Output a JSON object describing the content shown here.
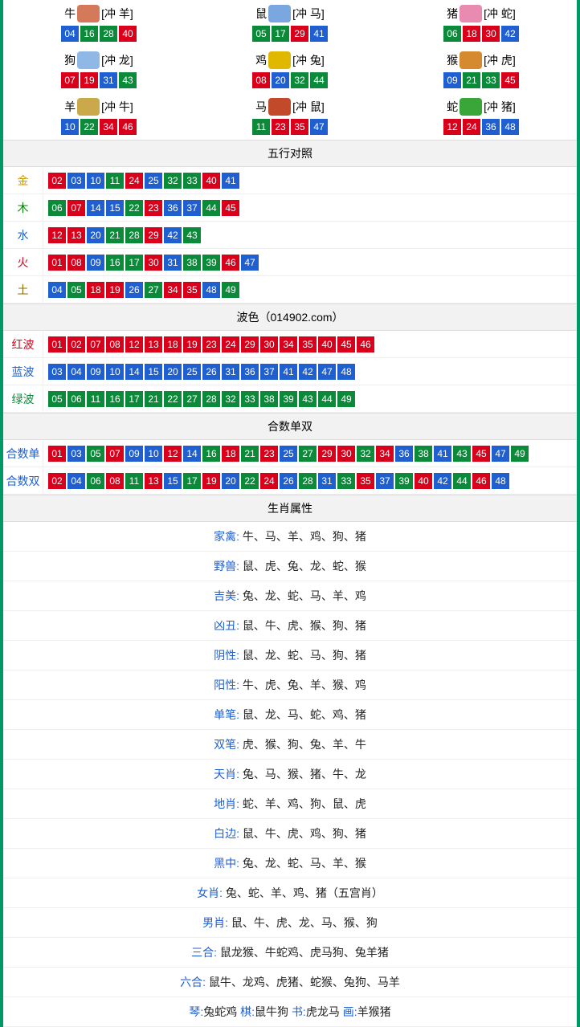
{
  "colors": {
    "frame": "#009866",
    "red": "#d9001b",
    "blue": "#1f5fd0",
    "green": "#0b8a3a",
    "header_bg": "#f2f2f2",
    "label_gold": "#c99a00",
    "label_wood": "#008000",
    "label_water": "#1f5fd0",
    "label_fire": "#d9001b",
    "label_earth": "#8a6d00",
    "label_redwave": "#d9001b",
    "label_bluewave": "#1f5fd0",
    "label_greenwave": "#0b8a3a",
    "label_heshu": "#1f5fd0",
    "attr_label": "#1f5fd0"
  },
  "zodiac": [
    {
      "name": "牛",
      "clash": "[冲 羊]",
      "icon_bg": "#d47a5a",
      "nums": [
        {
          "n": "04",
          "c": "blue"
        },
        {
          "n": "16",
          "c": "green"
        },
        {
          "n": "28",
          "c": "green"
        },
        {
          "n": "40",
          "c": "red"
        }
      ]
    },
    {
      "name": "鼠",
      "clash": "[冲 马]",
      "icon_bg": "#7aa7e0",
      "nums": [
        {
          "n": "05",
          "c": "green"
        },
        {
          "n": "17",
          "c": "green"
        },
        {
          "n": "29",
          "c": "red"
        },
        {
          "n": "41",
          "c": "blue"
        }
      ]
    },
    {
      "name": "猪",
      "clash": "[冲 蛇]",
      "icon_bg": "#e98bb0",
      "nums": [
        {
          "n": "06",
          "c": "green"
        },
        {
          "n": "18",
          "c": "red"
        },
        {
          "n": "30",
          "c": "red"
        },
        {
          "n": "42",
          "c": "blue"
        }
      ]
    },
    {
      "name": "狗",
      "clash": "[冲 龙]",
      "icon_bg": "#8fb8e6",
      "nums": [
        {
          "n": "07",
          "c": "red"
        },
        {
          "n": "19",
          "c": "red"
        },
        {
          "n": "31",
          "c": "blue"
        },
        {
          "n": "43",
          "c": "green"
        }
      ]
    },
    {
      "name": "鸡",
      "clash": "[冲 兔]",
      "icon_bg": "#e0b800",
      "nums": [
        {
          "n": "08",
          "c": "red"
        },
        {
          "n": "20",
          "c": "blue"
        },
        {
          "n": "32",
          "c": "green"
        },
        {
          "n": "44",
          "c": "green"
        }
      ]
    },
    {
      "name": "猴",
      "clash": "[冲 虎]",
      "icon_bg": "#d68a30",
      "nums": [
        {
          "n": "09",
          "c": "blue"
        },
        {
          "n": "21",
          "c": "green"
        },
        {
          "n": "33",
          "c": "green"
        },
        {
          "n": "45",
          "c": "red"
        }
      ]
    },
    {
      "name": "羊",
      "clash": "[冲 牛]",
      "icon_bg": "#c9a94a",
      "nums": [
        {
          "n": "10",
          "c": "blue"
        },
        {
          "n": "22",
          "c": "green"
        },
        {
          "n": "34",
          "c": "red"
        },
        {
          "n": "46",
          "c": "red"
        }
      ]
    },
    {
      "name": "马",
      "clash": "[冲 鼠]",
      "icon_bg": "#c24a2a",
      "nums": [
        {
          "n": "11",
          "c": "green"
        },
        {
          "n": "23",
          "c": "red"
        },
        {
          "n": "35",
          "c": "red"
        },
        {
          "n": "47",
          "c": "blue"
        }
      ]
    },
    {
      "name": "蛇",
      "clash": "[冲 猪]",
      "icon_bg": "#3aa63a",
      "nums": [
        {
          "n": "12",
          "c": "red"
        },
        {
          "n": "24",
          "c": "red"
        },
        {
          "n": "36",
          "c": "blue"
        },
        {
          "n": "48",
          "c": "blue"
        }
      ]
    }
  ],
  "wuxing": {
    "header": "五行对照",
    "rows": [
      {
        "label": "金",
        "label_color": "label_gold",
        "nums": [
          {
            "n": "02",
            "c": "red"
          },
          {
            "n": "03",
            "c": "blue"
          },
          {
            "n": "10",
            "c": "blue"
          },
          {
            "n": "11",
            "c": "green"
          },
          {
            "n": "24",
            "c": "red"
          },
          {
            "n": "25",
            "c": "blue"
          },
          {
            "n": "32",
            "c": "green"
          },
          {
            "n": "33",
            "c": "green"
          },
          {
            "n": "40",
            "c": "red"
          },
          {
            "n": "41",
            "c": "blue"
          }
        ]
      },
      {
        "label": "木",
        "label_color": "label_wood",
        "nums": [
          {
            "n": "06",
            "c": "green"
          },
          {
            "n": "07",
            "c": "red"
          },
          {
            "n": "14",
            "c": "blue"
          },
          {
            "n": "15",
            "c": "blue"
          },
          {
            "n": "22",
            "c": "green"
          },
          {
            "n": "23",
            "c": "red"
          },
          {
            "n": "36",
            "c": "blue"
          },
          {
            "n": "37",
            "c": "blue"
          },
          {
            "n": "44",
            "c": "green"
          },
          {
            "n": "45",
            "c": "red"
          }
        ]
      },
      {
        "label": "水",
        "label_color": "label_water",
        "nums": [
          {
            "n": "12",
            "c": "red"
          },
          {
            "n": "13",
            "c": "red"
          },
          {
            "n": "20",
            "c": "blue"
          },
          {
            "n": "21",
            "c": "green"
          },
          {
            "n": "28",
            "c": "green"
          },
          {
            "n": "29",
            "c": "red"
          },
          {
            "n": "42",
            "c": "blue"
          },
          {
            "n": "43",
            "c": "green"
          }
        ]
      },
      {
        "label": "火",
        "label_color": "label_fire",
        "nums": [
          {
            "n": "01",
            "c": "red"
          },
          {
            "n": "08",
            "c": "red"
          },
          {
            "n": "09",
            "c": "blue"
          },
          {
            "n": "16",
            "c": "green"
          },
          {
            "n": "17",
            "c": "green"
          },
          {
            "n": "30",
            "c": "red"
          },
          {
            "n": "31",
            "c": "blue"
          },
          {
            "n": "38",
            "c": "green"
          },
          {
            "n": "39",
            "c": "green"
          },
          {
            "n": "46",
            "c": "red"
          },
          {
            "n": "47",
            "c": "blue"
          }
        ]
      },
      {
        "label": "土",
        "label_color": "label_earth",
        "nums": [
          {
            "n": "04",
            "c": "blue"
          },
          {
            "n": "05",
            "c": "green"
          },
          {
            "n": "18",
            "c": "red"
          },
          {
            "n": "19",
            "c": "red"
          },
          {
            "n": "26",
            "c": "blue"
          },
          {
            "n": "27",
            "c": "green"
          },
          {
            "n": "34",
            "c": "red"
          },
          {
            "n": "35",
            "c": "red"
          },
          {
            "n": "48",
            "c": "blue"
          },
          {
            "n": "49",
            "c": "green"
          }
        ]
      }
    ]
  },
  "bose": {
    "header": "波色（014902.com）",
    "rows": [
      {
        "label": "红波",
        "label_color": "label_redwave",
        "nums": [
          {
            "n": "01",
            "c": "red"
          },
          {
            "n": "02",
            "c": "red"
          },
          {
            "n": "07",
            "c": "red"
          },
          {
            "n": "08",
            "c": "red"
          },
          {
            "n": "12",
            "c": "red"
          },
          {
            "n": "13",
            "c": "red"
          },
          {
            "n": "18",
            "c": "red"
          },
          {
            "n": "19",
            "c": "red"
          },
          {
            "n": "23",
            "c": "red"
          },
          {
            "n": "24",
            "c": "red"
          },
          {
            "n": "29",
            "c": "red"
          },
          {
            "n": "30",
            "c": "red"
          },
          {
            "n": "34",
            "c": "red"
          },
          {
            "n": "35",
            "c": "red"
          },
          {
            "n": "40",
            "c": "red"
          },
          {
            "n": "45",
            "c": "red"
          },
          {
            "n": "46",
            "c": "red"
          }
        ]
      },
      {
        "label": "蓝波",
        "label_color": "label_bluewave",
        "nums": [
          {
            "n": "03",
            "c": "blue"
          },
          {
            "n": "04",
            "c": "blue"
          },
          {
            "n": "09",
            "c": "blue"
          },
          {
            "n": "10",
            "c": "blue"
          },
          {
            "n": "14",
            "c": "blue"
          },
          {
            "n": "15",
            "c": "blue"
          },
          {
            "n": "20",
            "c": "blue"
          },
          {
            "n": "25",
            "c": "blue"
          },
          {
            "n": "26",
            "c": "blue"
          },
          {
            "n": "31",
            "c": "blue"
          },
          {
            "n": "36",
            "c": "blue"
          },
          {
            "n": "37",
            "c": "blue"
          },
          {
            "n": "41",
            "c": "blue"
          },
          {
            "n": "42",
            "c": "blue"
          },
          {
            "n": "47",
            "c": "blue"
          },
          {
            "n": "48",
            "c": "blue"
          }
        ]
      },
      {
        "label": "绿波",
        "label_color": "label_greenwave",
        "nums": [
          {
            "n": "05",
            "c": "green"
          },
          {
            "n": "06",
            "c": "green"
          },
          {
            "n": "11",
            "c": "green"
          },
          {
            "n": "16",
            "c": "green"
          },
          {
            "n": "17",
            "c": "green"
          },
          {
            "n": "21",
            "c": "green"
          },
          {
            "n": "22",
            "c": "green"
          },
          {
            "n": "27",
            "c": "green"
          },
          {
            "n": "28",
            "c": "green"
          },
          {
            "n": "32",
            "c": "green"
          },
          {
            "n": "33",
            "c": "green"
          },
          {
            "n": "38",
            "c": "green"
          },
          {
            "n": "39",
            "c": "green"
          },
          {
            "n": "43",
            "c": "green"
          },
          {
            "n": "44",
            "c": "green"
          },
          {
            "n": "49",
            "c": "green"
          }
        ]
      }
    ]
  },
  "heshu": {
    "header": "合数单双",
    "rows": [
      {
        "label": "合数单",
        "label_color": "label_heshu",
        "nums": [
          {
            "n": "01",
            "c": "red"
          },
          {
            "n": "03",
            "c": "blue"
          },
          {
            "n": "05",
            "c": "green"
          },
          {
            "n": "07",
            "c": "red"
          },
          {
            "n": "09",
            "c": "blue"
          },
          {
            "n": "10",
            "c": "blue"
          },
          {
            "n": "12",
            "c": "red"
          },
          {
            "n": "14",
            "c": "blue"
          },
          {
            "n": "16",
            "c": "green"
          },
          {
            "n": "18",
            "c": "red"
          },
          {
            "n": "21",
            "c": "green"
          },
          {
            "n": "23",
            "c": "red"
          },
          {
            "n": "25",
            "c": "blue"
          },
          {
            "n": "27",
            "c": "green"
          },
          {
            "n": "29",
            "c": "red"
          },
          {
            "n": "30",
            "c": "red"
          },
          {
            "n": "32",
            "c": "green"
          },
          {
            "n": "34",
            "c": "red"
          },
          {
            "n": "36",
            "c": "blue"
          },
          {
            "n": "38",
            "c": "green"
          },
          {
            "n": "41",
            "c": "blue"
          },
          {
            "n": "43",
            "c": "green"
          },
          {
            "n": "45",
            "c": "red"
          },
          {
            "n": "47",
            "c": "blue"
          },
          {
            "n": "49",
            "c": "green"
          }
        ]
      },
      {
        "label": "合数双",
        "label_color": "label_heshu",
        "nums": [
          {
            "n": "02",
            "c": "red"
          },
          {
            "n": "04",
            "c": "blue"
          },
          {
            "n": "06",
            "c": "green"
          },
          {
            "n": "08",
            "c": "red"
          },
          {
            "n": "11",
            "c": "green"
          },
          {
            "n": "13",
            "c": "red"
          },
          {
            "n": "15",
            "c": "blue"
          },
          {
            "n": "17",
            "c": "green"
          },
          {
            "n": "19",
            "c": "red"
          },
          {
            "n": "20",
            "c": "blue"
          },
          {
            "n": "22",
            "c": "green"
          },
          {
            "n": "24",
            "c": "red"
          },
          {
            "n": "26",
            "c": "blue"
          },
          {
            "n": "28",
            "c": "green"
          },
          {
            "n": "31",
            "c": "blue"
          },
          {
            "n": "33",
            "c": "green"
          },
          {
            "n": "35",
            "c": "red"
          },
          {
            "n": "37",
            "c": "blue"
          },
          {
            "n": "39",
            "c": "green"
          },
          {
            "n": "40",
            "c": "red"
          },
          {
            "n": "42",
            "c": "blue"
          },
          {
            "n": "44",
            "c": "green"
          },
          {
            "n": "46",
            "c": "red"
          },
          {
            "n": "48",
            "c": "blue"
          }
        ]
      }
    ]
  },
  "shengxiao": {
    "header": "生肖属性",
    "rows": [
      {
        "label": "家禽: ",
        "value": "牛、马、羊、鸡、狗、猪"
      },
      {
        "label": "野兽: ",
        "value": "鼠、虎、兔、龙、蛇、猴"
      },
      {
        "label": "吉美: ",
        "value": "兔、龙、蛇、马、羊、鸡"
      },
      {
        "label": "凶丑: ",
        "value": "鼠、牛、虎、猴、狗、猪"
      },
      {
        "label": "阴性: ",
        "value": "鼠、龙、蛇、马、狗、猪"
      },
      {
        "label": "阳性: ",
        "value": "牛、虎、兔、羊、猴、鸡"
      },
      {
        "label": "单笔: ",
        "value": "鼠、龙、马、蛇、鸡、猪"
      },
      {
        "label": "双笔: ",
        "value": "虎、猴、狗、兔、羊、牛"
      },
      {
        "label": "天肖: ",
        "value": "兔、马、猴、猪、牛、龙"
      },
      {
        "label": "地肖: ",
        "value": "蛇、羊、鸡、狗、鼠、虎"
      },
      {
        "label": "白边: ",
        "value": "鼠、牛、虎、鸡、狗、猪"
      },
      {
        "label": "黑中: ",
        "value": "兔、龙、蛇、马、羊、猴"
      },
      {
        "label": "女肖: ",
        "value": "兔、蛇、羊、鸡、猪（五宫肖）"
      },
      {
        "label": "男肖: ",
        "value": "鼠、牛、虎、龙、马、猴、狗"
      },
      {
        "label": "三合: ",
        "value": "鼠龙猴、牛蛇鸡、虎马狗、兔羊猪"
      },
      {
        "label": "六合: ",
        "value": "鼠牛、龙鸡、虎猪、蛇猴、兔狗、马羊"
      }
    ],
    "last_line_parts": [
      {
        "label": "琴:",
        "value": "兔蛇鸡   "
      },
      {
        "label": "棋:",
        "value": "鼠牛狗   "
      },
      {
        "label": "书:",
        "value": "虎龙马   "
      },
      {
        "label": "画:",
        "value": "羊猴猪"
      }
    ]
  }
}
